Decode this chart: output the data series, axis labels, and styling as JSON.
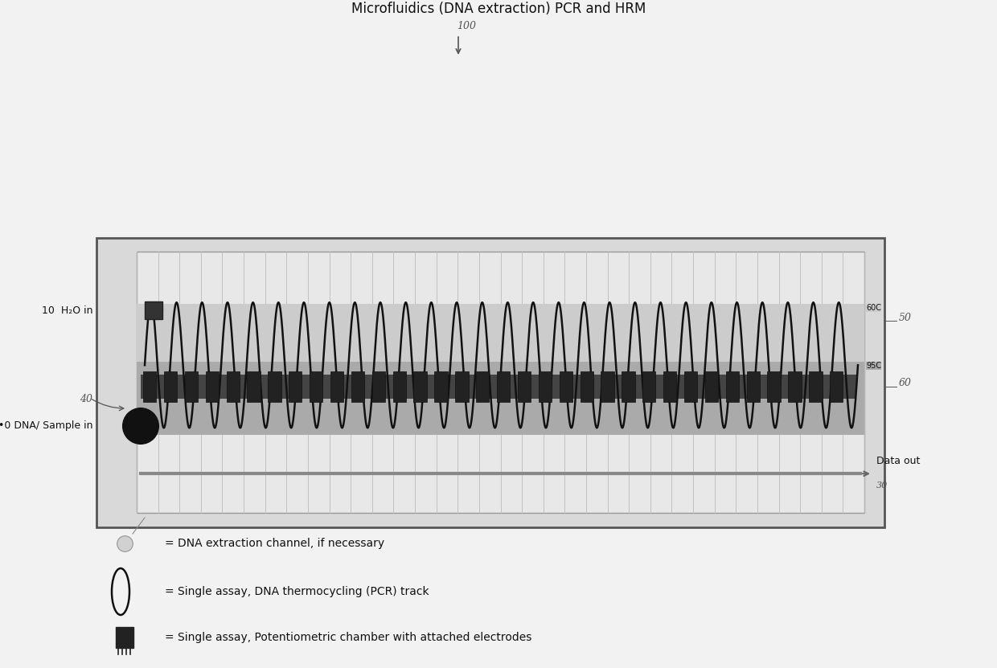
{
  "title": "Microfluidics (DNA extraction) PCR and HRM",
  "title_fontsize": 12,
  "bg_color": "#f2f2f2",
  "chip_face": "#d9d9d9",
  "chip_edge": "#555555",
  "inner_face": "#e8e8e8",
  "inner_edge": "#999999",
  "pcr_dark_face": "#aaaaaa",
  "pcr_light_face": "#cccccc",
  "grid_color": "#bbbbbb",
  "coil_color": "#111111",
  "electrode_dark": "#2a2a2a",
  "dataline_color": "#888888",
  "text_color": "#111111",
  "annot_color": "#555555",
  "label_h2o": "10  H₂O in",
  "label_dna": "•0 DNA/ Sample in",
  "label_40": "40",
  "label_50": "50",
  "label_60": "60",
  "label_100": "100",
  "label_60C": "60C",
  "label_95C": "95C",
  "label_30": "30",
  "label_data_out": "Data out",
  "legend1": "= DNA extraction channel, if necessary",
  "legend2": "= Single assay, DNA thermocycling (PCR) track",
  "legend3": "= Single assay, Potentiometric chamber with attached electrodes",
  "num_coils": 28,
  "num_electrodes": 34,
  "num_gridlines": 34
}
